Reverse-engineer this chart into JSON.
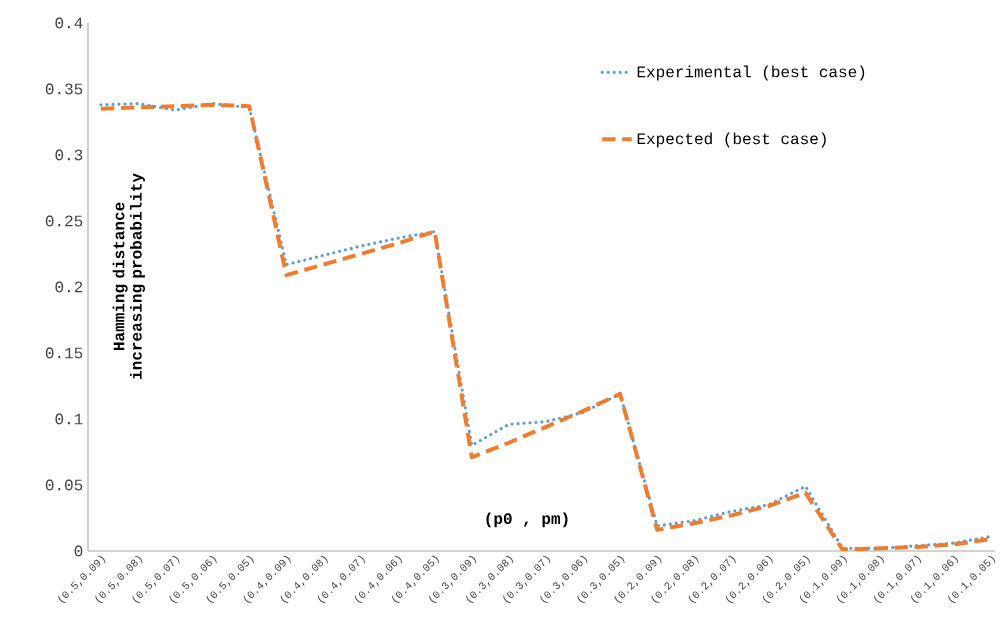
{
  "chart_data": {
    "type": "line",
    "xlabel": "(p0 , pm)",
    "ylabel": "Hamming distance increasing probability",
    "categories": [
      "(0.5,0.09)",
      "(0.5,0.08)",
      "(0.5,0.07)",
      "(0.5,0.06)",
      "(0.5,0.05)",
      "(0.4,0.09)",
      "(0.4,0.08)",
      "(0.4,0.07)",
      "(0.4,0.06)",
      "(0.4,0.05)",
      "(0.3,0.09)",
      "(0.3,0.08)",
      "(0.3,0.07)",
      "(0.3,0.06)",
      "(0.3,0.05)",
      "(0.2,0.09)",
      "(0.2,0.08)",
      "(0.2,0.07)",
      "(0.2,0.06)",
      "(0.2,0.05)",
      "(0.1,0.09)",
      "(0.1,0.08)",
      "(0.1,0.07)",
      "(0.1,0.06)",
      "(0.1,0.05)"
    ],
    "series": [
      {
        "name": "Experimental  (best case)",
        "color": "#5b9bd5",
        "line_style": "dotted",
        "values": [
          0.338,
          0.339,
          0.334,
          0.339,
          0.336,
          0.217,
          0.224,
          0.231,
          0.237,
          0.242,
          0.08,
          0.096,
          0.098,
          0.105,
          0.119,
          0.019,
          0.023,
          0.03,
          0.035,
          0.049,
          0.002,
          0.002,
          0.004,
          0.006,
          0.011
        ]
      },
      {
        "name": "Expected (best case)",
        "color": "#ed7d31",
        "line_style": "dashed",
        "values": [
          0.335,
          0.336,
          0.337,
          0.338,
          0.337,
          0.209,
          0.217,
          0.225,
          0.233,
          0.242,
          0.071,
          0.082,
          0.094,
          0.106,
          0.119,
          0.016,
          0.021,
          0.027,
          0.034,
          0.044,
          0.001,
          0.002,
          0.003,
          0.005,
          0.009
        ]
      }
    ],
    "ylim": [
      0,
      0.4
    ],
    "yticks": [
      0,
      0.05,
      0.1,
      0.15,
      0.2,
      0.25,
      0.3,
      0.35,
      0.4
    ],
    "grid": false,
    "legend": "top right",
    "marker": "none"
  }
}
